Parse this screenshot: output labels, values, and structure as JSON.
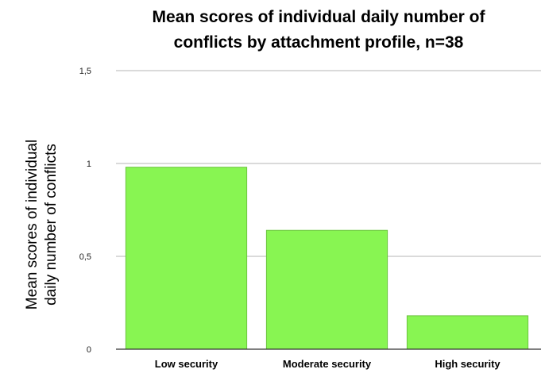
{
  "chart_data": {
    "type": "bar",
    "title_lines": [
      "Mean scores of individual daily number of",
      "conflicts by attachment profile, n=38"
    ],
    "ylabel_lines": [
      "Mean scores of individual",
      "daily number of conflicts"
    ],
    "xlabel": "",
    "categories": [
      "Low security",
      "Moderate security",
      "High security"
    ],
    "values": [
      0.98,
      0.64,
      0.18
    ],
    "ylim": [
      0,
      1.5
    ],
    "yticks": [
      0,
      0.5,
      1,
      1.5
    ],
    "ytick_labels": [
      "0",
      "0,5",
      "1",
      "1,5"
    ],
    "grid": true,
    "legend": "none",
    "bar_color": "#88F552",
    "bar_edge_color": "#6CC43F",
    "grid_color": "#b5b5b5",
    "axis_color": "#333333"
  }
}
